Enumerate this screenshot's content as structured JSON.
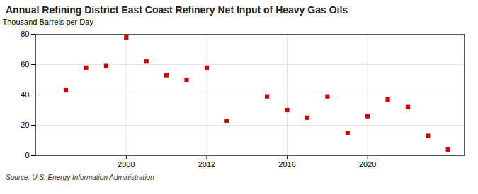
{
  "chart_data": {
    "type": "scatter",
    "title": "Annual Refining District East Coast Refinery Net Input of Heavy Gas Oils",
    "ylabel": "Thousand Barrels per Day",
    "source": "Source: U.S. Energy Information Administration",
    "x": [
      2005,
      2006,
      2007,
      2008,
      2009,
      2010,
      2011,
      2012,
      2013,
      2015,
      2016,
      2017,
      2018,
      2019,
      2020,
      2021,
      2022,
      2023,
      2024
    ],
    "values": [
      43,
      58,
      59,
      78,
      62,
      53,
      50,
      58,
      23,
      39,
      30,
      25,
      39,
      15,
      26,
      37,
      32,
      13,
      4
    ],
    "color": "#cc0000",
    "marker": "square",
    "xlim": [
      2003.5,
      2024.8
    ],
    "xticks": [
      2008,
      2012,
      2016,
      2020
    ],
    "ylim": [
      0,
      80
    ],
    "yticks": [
      0,
      20,
      40,
      60,
      80
    ],
    "grid": true
  }
}
